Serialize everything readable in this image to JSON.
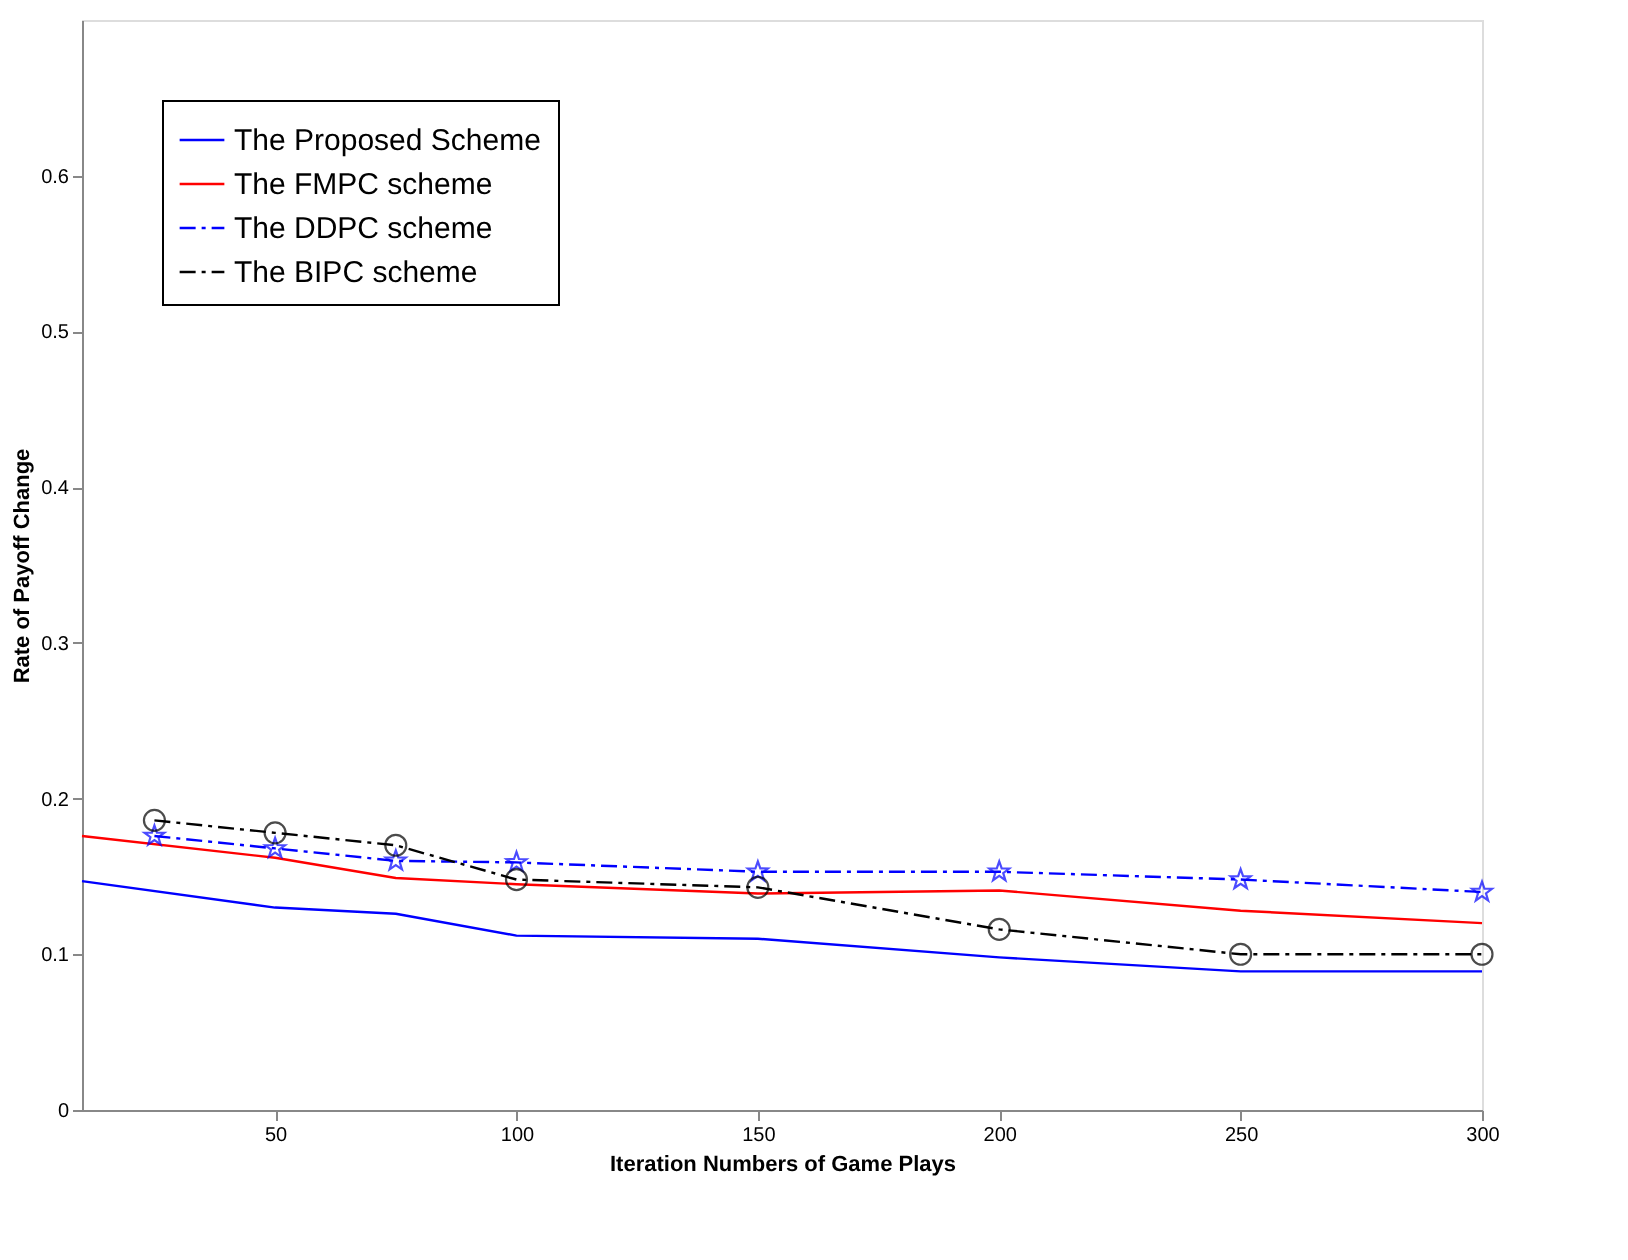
{
  "chart_data": {
    "type": "line",
    "xlabel": "Iteration Numbers of Game Plays",
    "ylabel": "Rate of Payoff Change",
    "xlim": [
      10,
      300
    ],
    "xticks": [
      50,
      100,
      150,
      200,
      250,
      300
    ],
    "ylim": [
      0,
      0.7
    ],
    "yticks": [
      0,
      0.1,
      0.2,
      0.3,
      0.4,
      0.5,
      0.6
    ],
    "grid": false,
    "legend": "top left",
    "series": [
      {
        "name": "The Proposed Scheme",
        "color": "#0000ff",
        "marker": "none",
        "line_style": "solid",
        "x": [
          10,
          50,
          75,
          100,
          150,
          200,
          250,
          300
        ],
        "values": [
          0.147,
          0.13,
          0.126,
          0.112,
          0.11,
          0.098,
          0.089,
          0.089
        ]
      },
      {
        "name": "The FMPC scheme",
        "color": "#ff0000",
        "marker": "none",
        "line_style": "solid",
        "x": [
          10,
          50,
          75,
          100,
          150,
          200,
          250,
          300
        ],
        "values": [
          0.176,
          0.162,
          0.149,
          0.145,
          0.139,
          0.141,
          0.128,
          0.12
        ]
      },
      {
        "name": "The DDPC scheme",
        "color": "#0000ff",
        "marker": "star",
        "line_style": "dashed",
        "x": [
          25,
          50,
          75,
          100,
          150,
          200,
          250,
          300
        ],
        "values": [
          0.176,
          0.168,
          0.16,
          0.159,
          0.153,
          0.153,
          0.148,
          0.14
        ]
      },
      {
        "name": "The BIPC scheme",
        "color": "#000000",
        "marker": "circle",
        "line_style": "dashed",
        "x": [
          25,
          50,
          75,
          100,
          150,
          200,
          250,
          300
        ],
        "values": [
          0.186,
          0.178,
          0.17,
          0.148,
          0.143,
          0.116,
          0.1,
          0.1
        ]
      }
    ]
  }
}
